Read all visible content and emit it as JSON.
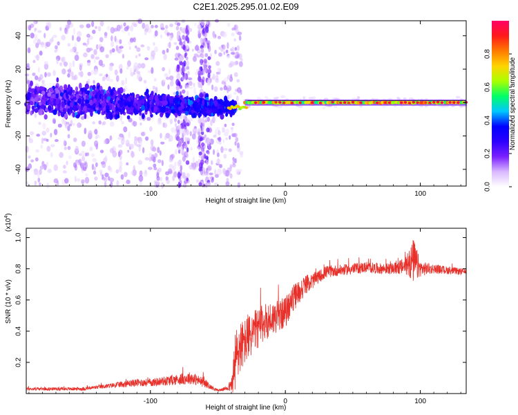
{
  "title": "C2E1.2025.295.01.02.E09",
  "chart_data": [
    {
      "type": "heatmap",
      "name": "spectrogram",
      "xlabel": "Height of straight line (km)",
      "ylabel": "Frequency (Hz)",
      "xlim": [
        -192,
        134
      ],
      "ylim": [
        -50,
        49
      ],
      "x_ticks": [
        -100,
        0,
        100
      ],
      "y_ticks": [
        -40,
        -20,
        0,
        20,
        40
      ],
      "colorbar": {
        "label": "Normalized spectral amplitude",
        "range": [
          0,
          1
        ],
        "ticks": [
          0.0,
          0.2,
          0.4,
          0.6,
          0.8
        ],
        "colormap": [
          "#ffffff",
          "#d9b8ff",
          "#7a1fff",
          "#2b00ff",
          "#0000ff",
          "#00c8ff",
          "#00ff66",
          "#aaff00",
          "#ffd400",
          "#ff7a00",
          "#ff1a1a",
          "#ff0066"
        ]
      },
      "description_features": [
        {
          "region": "x from -192 to -40 km",
          "frequency_spread_hz": [
            -20,
            15
          ],
          "amplitude": [
            0.1,
            0.35
          ]
        },
        {
          "region": "x from -40 to -30 km",
          "frequency_hz": -3,
          "amplitude": [
            0.6,
            0.9
          ]
        },
        {
          "region": "x from -30 to 134 km",
          "frequency_hz": 0,
          "amplitude": [
            0.5,
            1.0
          ]
        }
      ]
    },
    {
      "type": "line",
      "name": "snr",
      "xlabel": "Height of straight line (km)",
      "ylabel": "SNR (10 * v/v)",
      "multiplier_label": "(x10",
      "multiplier_exp": "4",
      "multiplier_close": ")",
      "xlim": [
        -192,
        134
      ],
      "ylim": [
        0,
        1.06
      ],
      "x_ticks": [
        -100,
        0,
        100
      ],
      "y_ticks": [
        0.2,
        0.4,
        0.6,
        0.8,
        1.0
      ],
      "color": "#e8302a",
      "x": [
        -192,
        -180,
        -170,
        -160,
        -150,
        -140,
        -130,
        -120,
        -110,
        -100,
        -90,
        -80,
        -70,
        -60,
        -55,
        -50,
        -45,
        -40,
        -37,
        -34,
        -31,
        -28,
        -25,
        -20,
        -15,
        -10,
        -5,
        0,
        5,
        10,
        15,
        20,
        25,
        30,
        40,
        50,
        60,
        70,
        80,
        90,
        95,
        100,
        110,
        120,
        134
      ],
      "values": [
        0.03,
        0.03,
        0.03,
        0.03,
        0.03,
        0.04,
        0.05,
        0.06,
        0.07,
        0.07,
        0.08,
        0.09,
        0.1,
        0.07,
        0.04,
        0.02,
        0.03,
        0.05,
        0.2,
        0.3,
        0.32,
        0.35,
        0.38,
        0.42,
        0.46,
        0.48,
        0.5,
        0.52,
        0.6,
        0.65,
        0.7,
        0.72,
        0.75,
        0.78,
        0.79,
        0.8,
        0.81,
        0.8,
        0.8,
        0.82,
        0.85,
        0.8,
        0.8,
        0.79,
        0.78
      ],
      "noise_amplitude": [
        0.01,
        0.01,
        0.01,
        0.01,
        0.012,
        0.012,
        0.015,
        0.02,
        0.025,
        0.025,
        0.03,
        0.035,
        0.04,
        0.03,
        0.015,
        0.008,
        0.01,
        0.04,
        0.22,
        0.18,
        0.15,
        0.15,
        0.14,
        0.13,
        0.12,
        0.11,
        0.1,
        0.1,
        0.09,
        0.08,
        0.06,
        0.05,
        0.04,
        0.04,
        0.035,
        0.035,
        0.035,
        0.035,
        0.035,
        0.06,
        0.15,
        0.05,
        0.03,
        0.025,
        0.02
      ]
    }
  ]
}
